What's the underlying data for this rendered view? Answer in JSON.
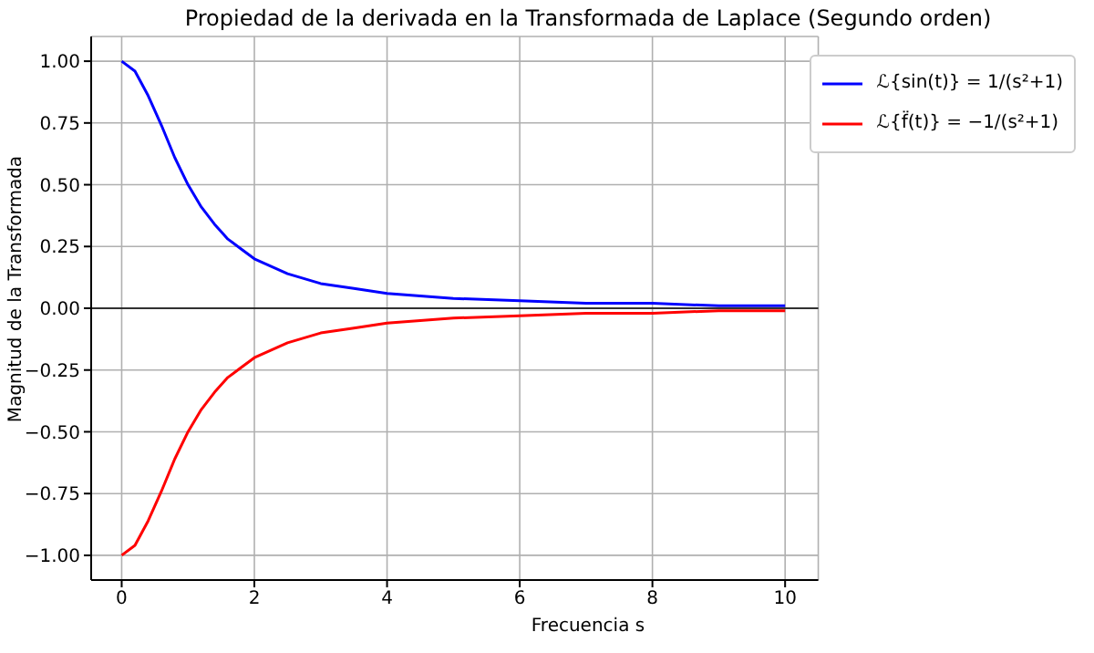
{
  "chart_data": {
    "type": "line",
    "title": "Propiedad de la derivada en la Transformada de Laplace (Segundo orden)",
    "xlabel": "Frecuencia s",
    "ylabel": "Magnitud de la Transformada",
    "x": [
      0,
      0.2,
      0.4,
      0.6,
      0.8,
      1,
      1.2,
      1.4,
      1.6,
      1.8,
      2,
      2.5,
      3,
      3.5,
      4,
      5,
      6,
      7,
      8,
      9,
      10
    ],
    "series": [
      {
        "name": "ℒ{sin(t)} = 1/(s²+1)",
        "color": "#0000ff",
        "values": [
          1,
          0.96,
          0.86,
          0.74,
          0.61,
          0.5,
          0.41,
          0.34,
          0.28,
          0.24,
          0.2,
          0.14,
          0.1,
          0.08,
          0.06,
          0.04,
          0.03,
          0.02,
          0.02,
          0.01,
          0.01
        ]
      },
      {
        "name": "ℒ{f̈(t)} = −1/(s²+1)",
        "color": "#ff0000",
        "values": [
          -1,
          -0.96,
          -0.86,
          -0.74,
          -0.61,
          -0.5,
          -0.41,
          -0.34,
          -0.28,
          -0.24,
          -0.2,
          -0.14,
          -0.1,
          -0.08,
          -0.06,
          -0.04,
          -0.03,
          -0.02,
          -0.02,
          -0.01,
          -0.01
        ]
      }
    ],
    "xlim": [
      -0.46,
      10.5
    ],
    "xticks": [
      0,
      2,
      4,
      6,
      8,
      10
    ],
    "ylim": [
      -1.1,
      1.1
    ],
    "yticks": [
      {
        "value": -1,
        "label": "−1.00"
      },
      {
        "value": -0.75,
        "label": "−0.75"
      },
      {
        "value": -0.5,
        "label": "−0.50"
      },
      {
        "value": -0.25,
        "label": "−0.25"
      },
      {
        "value": 0,
        "label": "0.00"
      },
      {
        "value": 0.25,
        "label": "0.25"
      },
      {
        "value": 0.5,
        "label": "0.50"
      },
      {
        "value": 0.75,
        "label": "0.75"
      },
      {
        "value": 1,
        "label": "1.00"
      }
    ],
    "ref_lines": [
      {
        "axis": "y",
        "value": 0,
        "color": "#000000"
      }
    ],
    "grid": true,
    "legend": "top right",
    "marker": "none",
    "line_style": "solid"
  }
}
